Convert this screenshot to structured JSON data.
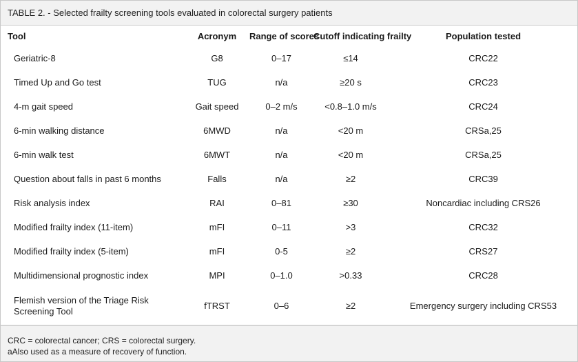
{
  "caption": "TABLE 2. - Selected frailty screening tools evaluated in colorectal surgery patients",
  "headers": {
    "tool": "Tool",
    "acronym": "Acronym",
    "range": "Range of scores",
    "cutoff": "Cutoff indicating frailty",
    "population": "Population tested"
  },
  "rows": [
    {
      "tool": "Geriatric-8",
      "acronym": "G8",
      "range": "0–17",
      "cutoff": "≤14",
      "population": "CRC22"
    },
    {
      "tool": "Timed Up and Go test",
      "acronym": "TUG",
      "range": "n/a",
      "cutoff": "≥20 s",
      "population": "CRC23"
    },
    {
      "tool": "4-m gait speed",
      "acronym": "Gait speed",
      "range": "0–2 m/s",
      "cutoff": "<0.8–1.0 m/s",
      "population": "CRC24"
    },
    {
      "tool": "6-min walking distance",
      "acronym": "6MWD",
      "range": "n/a",
      "cutoff": "<20 m",
      "population": "CRSa,25"
    },
    {
      "tool": "6-min walk test",
      "acronym": "6MWT",
      "range": "n/a",
      "cutoff": "<20 m",
      "population": "CRSa,25"
    },
    {
      "tool": "Question about falls in past 6 months",
      "acronym": "Falls",
      "range": "n/a",
      "cutoff": "≥2",
      "population": "CRC39"
    },
    {
      "tool": "Risk analysis index",
      "acronym": "RAI",
      "range": "0–81",
      "cutoff": "≥30",
      "population": "Noncardiac including CRS26"
    },
    {
      "tool": "Modified frailty index (11-item)",
      "acronym": "mFI",
      "range": "0–11",
      "cutoff": ">3",
      "population": "CRC32"
    },
    {
      "tool": "Modified frailty index (5-item)",
      "acronym": "mFI",
      "range": "0-5",
      "cutoff": "≥2",
      "population": "CRS27"
    },
    {
      "tool": "Multidimensional prognostic index",
      "acronym": "MPI",
      "range": "0–1.0",
      "cutoff": ">0.33",
      "population": "CRC28"
    },
    {
      "tool": "Flemish version of the Triage Risk Screening Tool",
      "acronym": "fTRST",
      "range": "0–6",
      "cutoff": "≥2",
      "population": "Emergency surgery including CRS53"
    }
  ],
  "footnotes": {
    "line1": "CRC = colorectal cancer; CRS = colorectal surgery.",
    "line2": "aAlso used as a measure of recovery of function."
  }
}
